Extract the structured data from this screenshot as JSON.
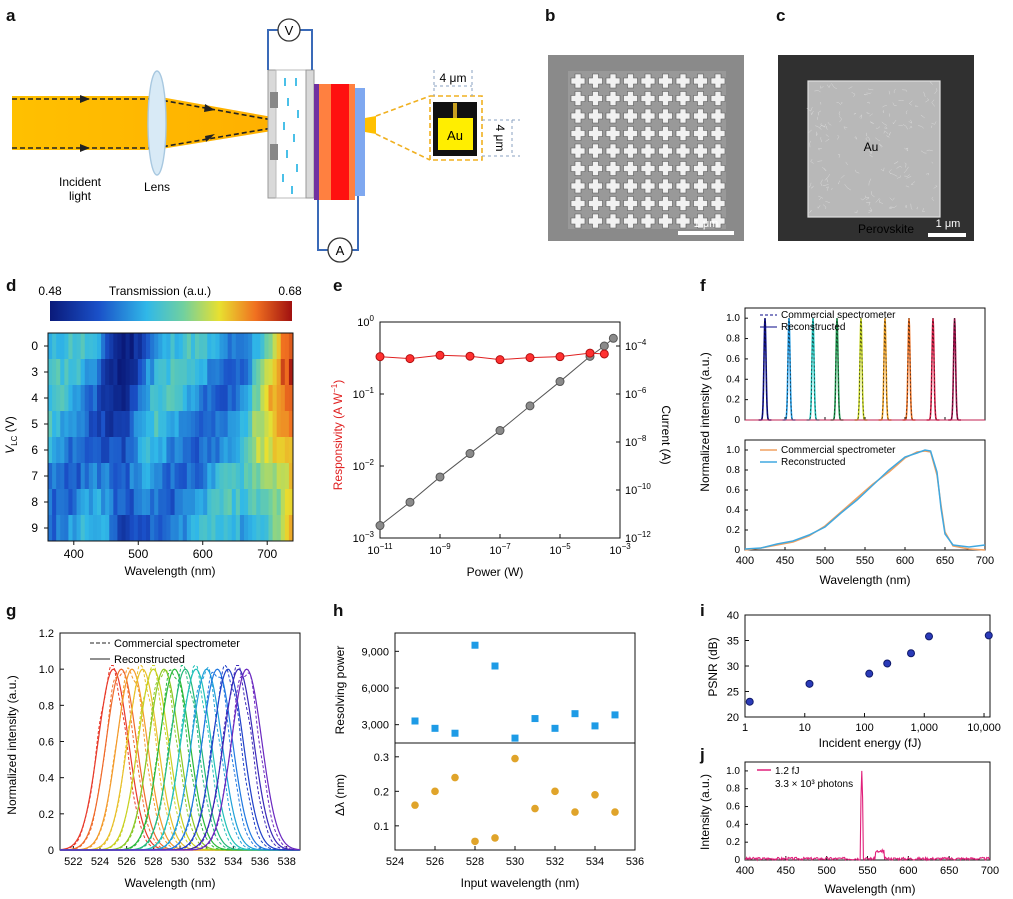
{
  "panels": {
    "a": "a",
    "b": "b",
    "c": "c",
    "d": "d",
    "e": "e",
    "f": "f",
    "g": "g",
    "h": "h",
    "i": "i",
    "j": "j"
  },
  "schematic": {
    "incident_light": [
      "Incident",
      "light"
    ],
    "lens": "Lens",
    "voltmeter": "V",
    "ammeter": "A",
    "width_dim": "4 μm",
    "height_dim": "4 μm",
    "electrode": "Au"
  },
  "sem_b": {
    "scale_bar": "1 μm"
  },
  "sem_c": {
    "label_top": "Au",
    "label_bottom": "Perovskite",
    "scale_bar": "1 μm"
  },
  "colors": {
    "beam": "#FFC000",
    "responsivity": "#E02020",
    "current": "#777777",
    "blue_marker": "#1E9BE6",
    "orange_marker": "#E0A42A",
    "psnr": "#1a2a9a",
    "photon_trace": "#E0207A"
  },
  "chart_data": [
    {
      "id": "d",
      "type": "heatmap",
      "colorbar": {
        "title": "Transmission (a.u.)",
        "min_label": "0.48",
        "max_label": "0.68",
        "min": 0.48,
        "max": 0.68
      },
      "xlabel": "Wavelength (nm)",
      "ylabel_main": "V",
      "ylabel_sub": "LC",
      "ylabel_unit": " (V)",
      "xlim": [
        360,
        740
      ],
      "xticks": [
        "400",
        "500",
        "600",
        "700"
      ],
      "yticks": [
        "0",
        "3",
        "4",
        "5",
        "6",
        "7",
        "8",
        "9"
      ]
    },
    {
      "id": "e",
      "type": "scatter",
      "xlabel": "Power (W)",
      "ylabel_left": "Responsivity (A W",
      "ylabel_left_sup": "−1",
      "ylabel_left_end": ")",
      "ylabel_right": "Current (A)",
      "x_ticks": [
        {
          "base": "10",
          "exp": "−11"
        },
        {
          "base": "10",
          "exp": "−9"
        },
        {
          "base": "10",
          "exp": "−7"
        },
        {
          "base": "10",
          "exp": "−5"
        },
        {
          "base": "10",
          "exp": "−3"
        }
      ],
      "yl_ticks": [
        {
          "base": "10",
          "exp": "0"
        },
        {
          "base": "10",
          "exp": "−1"
        },
        {
          "base": "10",
          "exp": "−2"
        },
        {
          "base": "10",
          "exp": "−3"
        }
      ],
      "yr_ticks": [
        {
          "base": "10",
          "exp": "−4"
        },
        {
          "base": "10",
          "exp": "−6"
        },
        {
          "base": "10",
          "exp": "−8"
        },
        {
          "base": "10",
          "exp": "−10"
        },
        {
          "base": "10",
          "exp": "−12"
        }
      ],
      "xlog": [
        -11,
        -3
      ],
      "ylog_left": [
        -3,
        0
      ],
      "ylog_right": [
        -12,
        -3
      ],
      "responsivity": {
        "x": [
          1e-11,
          1e-10,
          1e-09,
          1e-08,
          1e-07,
          1e-06,
          1e-05,
          0.0001,
          0.0003
        ],
        "y": [
          0.33,
          0.31,
          0.345,
          0.335,
          0.3,
          0.32,
          0.33,
          0.37,
          0.36
        ]
      },
      "current": {
        "x": [
          1e-11,
          1e-10,
          1e-09,
          1e-08,
          1e-07,
          1e-06,
          1e-05,
          0.0001,
          0.0003,
          0.0006
        ],
        "y": [
          3.3e-12,
          3.1e-11,
          3.5e-10,
          3.3e-09,
          3e-08,
          3.2e-07,
          3.3e-06,
          3.7e-05,
          0.0001,
          0.00021
        ]
      }
    },
    {
      "id": "f",
      "type": "line",
      "ylabel": "Normalized intensity (a.u.)",
      "xlabel": "Wavelength (nm)",
      "xticks": [
        "400",
        "450",
        "500",
        "550",
        "600",
        "650",
        "700"
      ],
      "xlim": [
        400,
        700
      ],
      "top": {
        "legend": [
          "Commercial spectrometer",
          "Reconstructed"
        ],
        "yticks": [
          "0",
          "0.2",
          "0.4",
          "0.6",
          "0.8",
          "1.0"
        ],
        "peaks": [
          425,
          455,
          485,
          515,
          545,
          575,
          605,
          635,
          662
        ],
        "colors": [
          "#0a0a8a",
          "#1e9be6",
          "#20c8c0",
          "#1e9b50",
          "#c8d820",
          "#f0a020",
          "#f07020",
          "#e0204a",
          "#a0104a"
        ]
      },
      "bottom": {
        "legend": [
          "Commercial spectrometer",
          "Reconstructed"
        ],
        "yticks": [
          "0",
          "0.2",
          "0.4",
          "0.6",
          "0.8",
          "1.0"
        ],
        "x": [
          400,
          420,
          440,
          460,
          480,
          500,
          520,
          540,
          560,
          580,
          600,
          615,
          625,
          632,
          640,
          645,
          650,
          660,
          680,
          700
        ],
        "commercial": [
          0.0,
          0.02,
          0.05,
          0.08,
          0.14,
          0.24,
          0.38,
          0.52,
          0.66,
          0.78,
          0.92,
          0.98,
          0.99,
          0.98,
          0.75,
          0.45,
          0.18,
          0.04,
          0.01,
          0.0
        ],
        "reconstructed": [
          0.01,
          0.02,
          0.06,
          0.09,
          0.15,
          0.23,
          0.37,
          0.5,
          0.65,
          0.8,
          0.93,
          0.97,
          1.0,
          0.99,
          0.78,
          0.42,
          0.16,
          0.05,
          0.03,
          0.05
        ]
      }
    },
    {
      "id": "g",
      "type": "line",
      "ylabel": "Normalized intensity (a.u.)",
      "xlabel": "Wavelength (nm)",
      "legend": [
        "Commercial spectrometer",
        "Reconstructed"
      ],
      "xlim": [
        521,
        539
      ],
      "ylim": [
        0,
        1.2
      ],
      "xticks": [
        "522",
        "524",
        "526",
        "528",
        "530",
        "532",
        "534",
        "536",
        "538"
      ],
      "yticks": [
        "0",
        "0.2",
        "0.4",
        "0.6",
        "0.8",
        "1.0",
        "1.2"
      ],
      "centers": [
        525,
        525.6,
        526.4,
        527.2,
        528.0,
        528.8,
        529.6,
        530.4,
        531.2,
        532.0,
        532.8,
        533.6,
        534.4,
        535.0
      ],
      "colors": [
        "#e83a2a",
        "#ef6a2a",
        "#f39a2a",
        "#e8c02a",
        "#c8d020",
        "#8ac824",
        "#2ab83a",
        "#22b87a",
        "#20c0b8",
        "#20a0d8",
        "#2078e0",
        "#2040c8",
        "#3a28b8",
        "#6a28c0"
      ]
    },
    {
      "id": "h",
      "type": "scatter",
      "xlabel": "Input wavelength (nm)",
      "xticks": [
        "524",
        "526",
        "528",
        "530",
        "532",
        "534",
        "536"
      ],
      "xlim": [
        524,
        536
      ],
      "top": {
        "ylabel": "Resolving power",
        "yticks": [
          "3,000",
          "6,000",
          "9,000"
        ],
        "ylim": [
          1500,
          10500
        ],
        "x": [
          525,
          526,
          527,
          528,
          529,
          530,
          531,
          532,
          533,
          534,
          535
        ],
        "y": [
          3300,
          2700,
          2300,
          9500,
          7800,
          1900,
          3500,
          2700,
          3900,
          2900,
          3800
        ]
      },
      "bottom": {
        "ylabel": "Δλ (nm)",
        "yticks": [
          "0.1",
          "0.2",
          "0.3"
        ],
        "ylim": [
          0.03,
          0.34
        ],
        "x": [
          525,
          526,
          527,
          528,
          529,
          530,
          531,
          532,
          533,
          534,
          535
        ],
        "y": [
          0.16,
          0.2,
          0.24,
          0.055,
          0.065,
          0.295,
          0.15,
          0.2,
          0.14,
          0.19,
          0.14
        ]
      }
    },
    {
      "id": "i",
      "type": "scatter",
      "xlabel": "Incident energy (fJ)",
      "ylabel": "PSNR (dB)",
      "xticks": [
        "1",
        "10",
        "100",
        "1,000",
        "10,000"
      ],
      "yticks": [
        "20",
        "25",
        "30",
        "35",
        "40"
      ],
      "xlog": [
        0,
        4.1
      ],
      "ylim": [
        20,
        40
      ],
      "x": [
        1.2,
        12,
        120,
        240,
        600,
        1200,
        12000
      ],
      "y": [
        23,
        26.5,
        28.5,
        30.5,
        32.5,
        35.8,
        36
      ]
    },
    {
      "id": "j",
      "type": "line",
      "xlabel": "Wavelength (nm)",
      "ylabel": "Intensity (a.u.)",
      "legend_line1": "1.2 fJ",
      "legend_line2": "3.3 × 10³ photons",
      "xticks": [
        "400",
        "450",
        "500",
        "550",
        "600",
        "650",
        "700"
      ],
      "yticks": [
        "0",
        "0.2",
        "0.4",
        "0.6",
        "0.8",
        "1.0"
      ],
      "xlim": [
        400,
        700
      ],
      "ylim": [
        0,
        1.1
      ],
      "peak": 543
    }
  ]
}
